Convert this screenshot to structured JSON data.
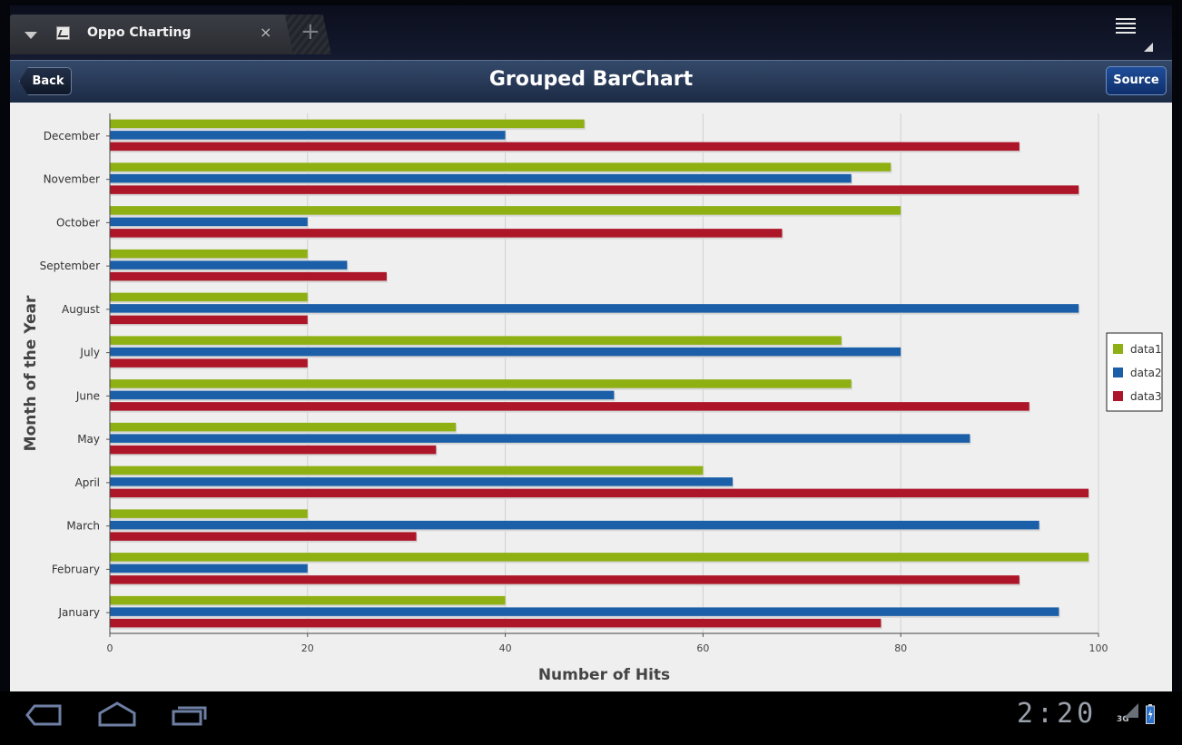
{
  "browser": {
    "tab_title": "Oppo Charting",
    "tab_close": "×",
    "new_tab": "+"
  },
  "appbar": {
    "back_label": "Back",
    "title": "Grouped BarChart",
    "source_label": "Source"
  },
  "status": {
    "clock": "2:20",
    "network": "3G"
  },
  "icons": {
    "dropdown": "chevron-down-icon",
    "favicon": "chart-favicon-icon",
    "menu": "menu-icon",
    "nav_back": "back-nav-icon",
    "nav_home": "home-nav-icon",
    "nav_recent": "recent-apps-icon",
    "signal": "signal-icon",
    "battery": "battery-charging-icon"
  },
  "colors": {
    "data1": "#8fb013",
    "data2": "#1b5fa8",
    "data3": "#ad1628",
    "appbar": "#24375a",
    "source_button": "#1a4590"
  },
  "chart_data": {
    "type": "bar",
    "orientation": "horizontal",
    "categories": [
      "January",
      "February",
      "March",
      "April",
      "May",
      "June",
      "July",
      "August",
      "September",
      "October",
      "November",
      "December"
    ],
    "series": [
      {
        "name": "data1",
        "values": [
          40,
          99,
          20,
          60,
          35,
          75,
          74,
          20,
          20,
          80,
          79,
          48
        ]
      },
      {
        "name": "data2",
        "values": [
          96,
          20,
          94,
          63,
          87,
          51,
          80,
          98,
          24,
          20,
          75,
          40
        ]
      },
      {
        "name": "data3",
        "values": [
          78,
          92,
          31,
          99,
          33,
          93,
          20,
          20,
          28,
          68,
          98,
          92
        ]
      }
    ],
    "xlabel": "Number of Hits",
    "ylabel": "Month of the Year",
    "xlim": [
      0,
      100
    ],
    "xticks": [
      0,
      20,
      40,
      60,
      80,
      100
    ],
    "grid": "vertical",
    "legend": "right"
  }
}
